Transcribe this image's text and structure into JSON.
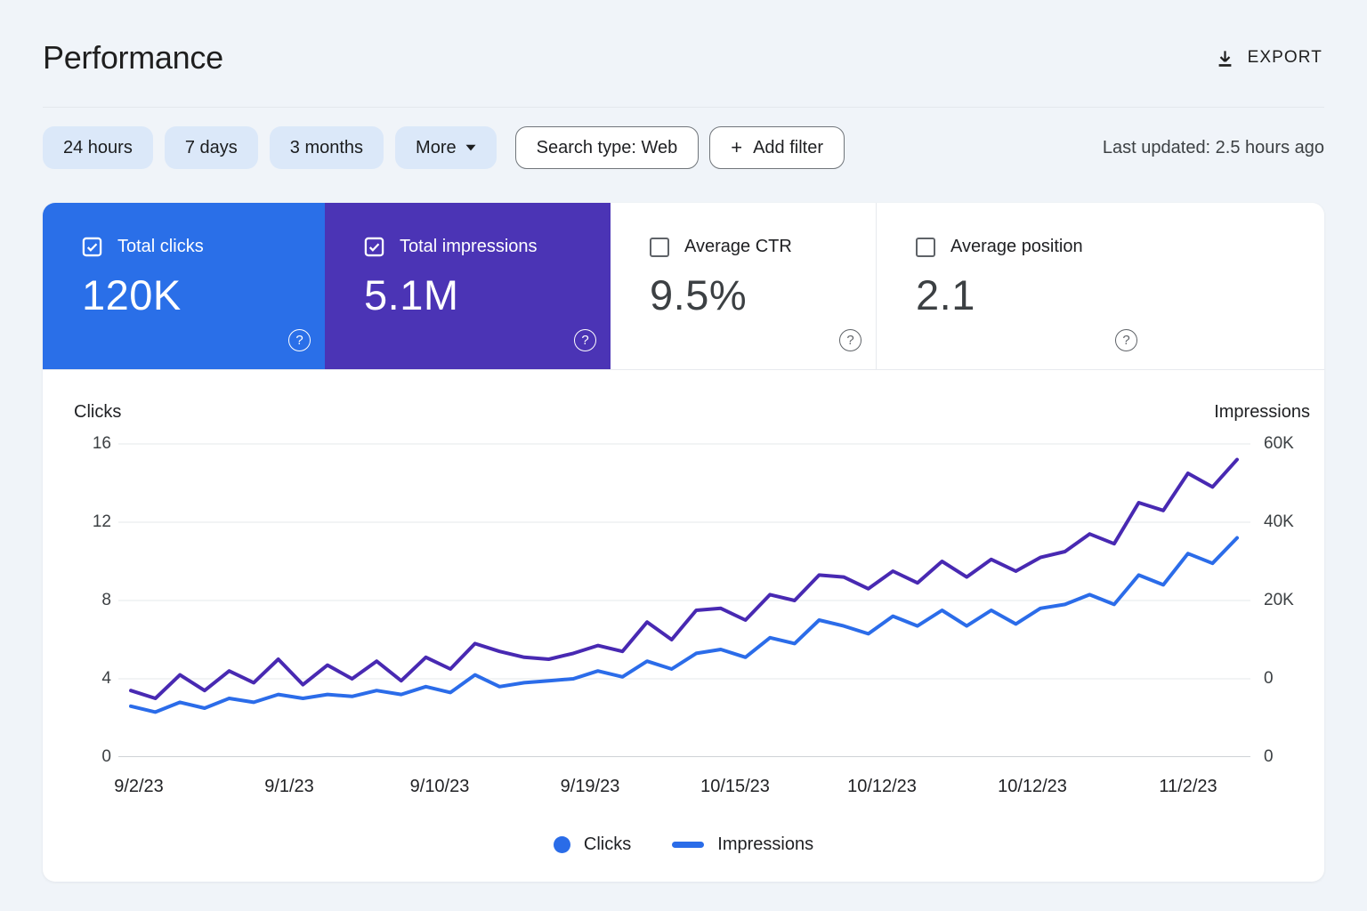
{
  "header": {
    "title": "Performance",
    "export_label": "EXPORT"
  },
  "filters": {
    "chips": [
      "24 hours",
      "7 days",
      "3 months"
    ],
    "more_label": "More",
    "search_type_label": "Search type: Web",
    "add_filter_plus": "+",
    "add_filter_label": "Add filter",
    "last_updated": "Last updated: 2.5 hours ago"
  },
  "icons": {
    "help": "?"
  },
  "colors": {
    "clicks_card": "#2a6fe8",
    "impressions_card": "#4b34b5",
    "clicks_line": "#2b6ce9",
    "impressions_line": "#4829b2",
    "legend_blue": "#2a6ce8"
  },
  "metric_cards": [
    {
      "label": "Total clicks",
      "value": "120K",
      "checked": true
    },
    {
      "label": "Total impressions",
      "value": "5.1M",
      "checked": true
    },
    {
      "label": "Average CTR",
      "value": "9.5%",
      "checked": false
    },
    {
      "label": "Average position",
      "value": "2.1",
      "checked": false
    }
  ],
  "chart_data": {
    "type": "line",
    "title": "",
    "x_tick_labels": [
      "9/2/23",
      "9/1/23",
      "9/10/23",
      "9/19/23",
      "10/15/23",
      "10/12/23",
      "10/12/23",
      "11/2/23"
    ],
    "left_axis": {
      "label": "Clicks",
      "ticks": [
        "16",
        "12",
        "8",
        "4",
        "0"
      ],
      "range": [
        0,
        16
      ]
    },
    "right_axis": {
      "label": "Impressions",
      "ticks": [
        "60K",
        "40K",
        "20K",
        "0",
        "0"
      ]
    },
    "grid": true,
    "legend_position": "bottom-center",
    "legend": [
      {
        "label": "Clicks",
        "swatch": "dot",
        "color": "#2a6ce8"
      },
      {
        "label": "Impressions",
        "swatch": "dash",
        "color": "#2a6ce8"
      }
    ],
    "series_units": "left-axis (clicks) units; right axis maps 4->0, 8->20K, 12->40K, 16->60K impressions",
    "series": [
      {
        "name": "Impressions",
        "color": "#4829b2",
        "values": [
          3.4,
          3.0,
          4.2,
          3.4,
          4.4,
          3.8,
          5.0,
          3.7,
          4.7,
          4.0,
          4.9,
          3.9,
          5.1,
          4.5,
          5.8,
          5.4,
          5.1,
          5.0,
          5.3,
          5.7,
          5.4,
          6.9,
          6.0,
          7.5,
          7.6,
          7.0,
          8.3,
          8.0,
          9.3,
          9.2,
          8.6,
          9.5,
          8.9,
          10.0,
          9.2,
          10.1,
          9.5,
          10.2,
          10.5,
          11.4,
          10.9,
          13.0,
          12.6,
          14.5,
          13.8,
          15.2
        ]
      },
      {
        "name": "Clicks",
        "color": "#2b6ce9",
        "values": [
          2.6,
          2.3,
          2.8,
          2.5,
          3.0,
          2.8,
          3.2,
          3.0,
          3.2,
          3.1,
          3.4,
          3.2,
          3.6,
          3.3,
          4.2,
          3.6,
          3.8,
          3.9,
          4.0,
          4.4,
          4.1,
          4.9,
          4.5,
          5.3,
          5.5,
          5.1,
          6.1,
          5.8,
          7.0,
          6.7,
          6.3,
          7.2,
          6.7,
          7.5,
          6.7,
          7.5,
          6.8,
          7.6,
          7.8,
          8.3,
          7.8,
          9.3,
          8.8,
          10.4,
          9.9,
          11.2
        ]
      }
    ]
  }
}
